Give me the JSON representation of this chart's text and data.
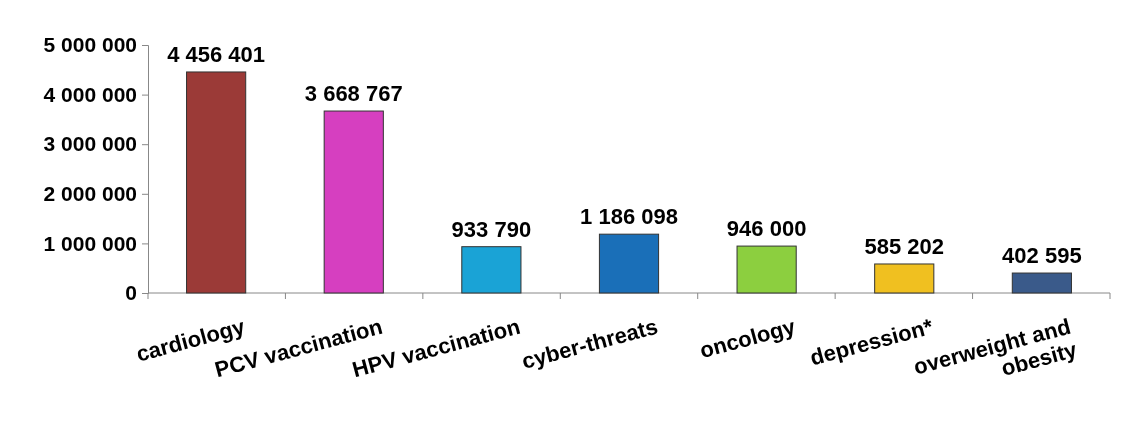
{
  "chart_data": {
    "type": "bar",
    "categories": [
      "cardiology",
      "PCV vaccination",
      "HPV vaccination",
      "cyber-threats",
      "oncology",
      "depression*",
      "overweight and obesity"
    ],
    "values": [
      4456401,
      3668767,
      933790,
      1186098,
      946000,
      585202,
      402595
    ],
    "colors": [
      "#9b3a37",
      "#d63fc0",
      "#1aa3d6",
      "#1a6fb8",
      "#8ccf3f",
      "#f0c020",
      "#3a5a8a"
    ],
    "value_labels": [
      "4 456 401",
      "3 668 767",
      "933 790",
      "1 186 098",
      "946 000",
      "585 202",
      "402 595"
    ],
    "ylim": [
      0,
      5000000
    ],
    "yticks": [
      {
        "value": 0,
        "label": "0"
      },
      {
        "value": 1000000,
        "label": "1 000 000"
      },
      {
        "value": 2000000,
        "label": "2 000 000"
      },
      {
        "value": 3000000,
        "label": "3 000 000"
      },
      {
        "value": 4000000,
        "label": "4 000 000"
      },
      {
        "value": 5000000,
        "label": "5 000 000"
      }
    ],
    "grid": false
  }
}
